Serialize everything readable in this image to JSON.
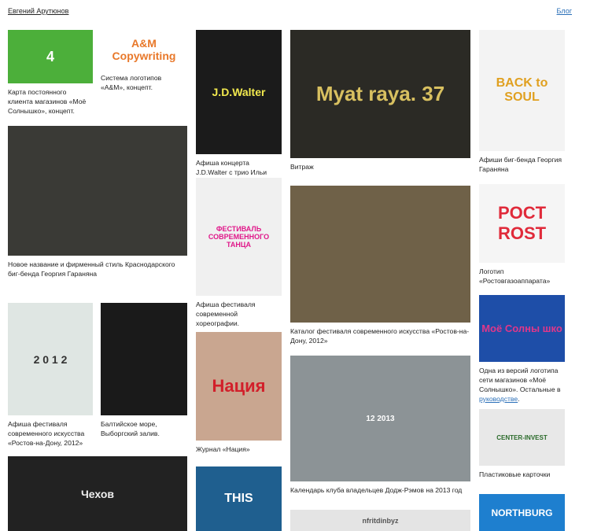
{
  "header": {
    "author": "Евгений Арутюнов",
    "blog": "Блог"
  },
  "items": [
    {
      "caption": "Карта постоянного клиента магазинов «Моё Солнышко», концепт.",
      "image_text": "4"
    },
    {
      "caption": "Система логотипов «A&M», концепт.",
      "image_text": "A&M Copywriting"
    },
    {
      "caption": "Новое название и фирменный стиль Краснодарского биг-бенда Георгия Гараняна"
    },
    {
      "caption": "Афиша фестиваля современного искусства «Ростов-на-Дону, 2012»",
      "image_text": "2 0 1 2"
    },
    {
      "caption": "Балтийское море, Выборгский залив."
    },
    {
      "image_text": "Чехов"
    },
    {
      "caption": "Афиша концерта J.D.Walter с трио Ильи Филиппова",
      "image_text": "J.D.Walter"
    },
    {
      "caption": "Афиша фестиваля современной хореографии.",
      "image_text": "ФЕСТИВАЛЬ СОВРЕМЕННОГО ТАНЦА"
    },
    {
      "caption": "Журнал «Нация»",
      "image_text": "Нация"
    },
    {
      "image_text": "THIS"
    },
    {
      "caption": "Витраж",
      "image_text": "Myat raya. 37"
    },
    {
      "caption": "Каталог фестиваля современного искусства «Ростов-на-Дону, 2012»"
    },
    {
      "caption": "Календарь клуба владельцев Додж-Рэмов на 2013 год",
      "image_text": "12 2013"
    },
    {
      "image_text": "nfritdinbyz"
    },
    {
      "caption": "Афиши биг-бенда Георгия Гараняна",
      "image_text": "BACK to SOUL"
    },
    {
      "caption": "Логотип «Ростовгазоаппарата»",
      "image_text": "POCT ROST"
    },
    {
      "caption": "Одна из версий логотипа сети магазинов «Моё Солнышко». Остальные в ",
      "link": "руководстве",
      "tail": ".",
      "image_text": "Моё Солны шко"
    },
    {
      "caption": "Пластиковые карточки",
      "image_text": "CENTER-INVEST"
    },
    {
      "image_text": "NORTHBURG"
    }
  ]
}
